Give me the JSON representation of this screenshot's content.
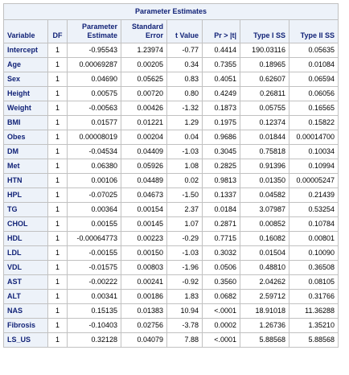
{
  "title": "Parameter Estimates",
  "headers": {
    "variable": "Variable",
    "df": "DF",
    "estimate_l1": "Parameter",
    "estimate_l2": "Estimate",
    "stderr_l1": "Standard",
    "stderr_l2": "Error",
    "tvalue": "t Value",
    "p": "Pr > |t|",
    "ss1": "Type I SS",
    "ss2": "Type II SS"
  },
  "rows": [
    {
      "variable": "Intercept",
      "df": "1",
      "estimate": "-0.95543",
      "stderr": "1.23974",
      "t": "-0.77",
      "p": "0.4414",
      "ss1": "190.03116",
      "ss2": "0.05635"
    },
    {
      "variable": "Age",
      "df": "1",
      "estimate": "0.00069287",
      "stderr": "0.00205",
      "t": "0.34",
      "p": "0.7355",
      "ss1": "0.18965",
      "ss2": "0.01084"
    },
    {
      "variable": "Sex",
      "df": "1",
      "estimate": "0.04690",
      "stderr": "0.05625",
      "t": "0.83",
      "p": "0.4051",
      "ss1": "0.62607",
      "ss2": "0.06594"
    },
    {
      "variable": "Height",
      "df": "1",
      "estimate": "0.00575",
      "stderr": "0.00720",
      "t": "0.80",
      "p": "0.4249",
      "ss1": "0.26811",
      "ss2": "0.06056"
    },
    {
      "variable": "Weight",
      "df": "1",
      "estimate": "-0.00563",
      "stderr": "0.00426",
      "t": "-1.32",
      "p": "0.1873",
      "ss1": "0.05755",
      "ss2": "0.16565"
    },
    {
      "variable": "BMI",
      "df": "1",
      "estimate": "0.01577",
      "stderr": "0.01221",
      "t": "1.29",
      "p": "0.1975",
      "ss1": "0.12374",
      "ss2": "0.15822"
    },
    {
      "variable": "Obes",
      "df": "1",
      "estimate": "0.00008019",
      "stderr": "0.00204",
      "t": "0.04",
      "p": "0.9686",
      "ss1": "0.01844",
      "ss2": "0.00014700"
    },
    {
      "variable": "DM",
      "df": "1",
      "estimate": "-0.04534",
      "stderr": "0.04409",
      "t": "-1.03",
      "p": "0.3045",
      "ss1": "0.75818",
      "ss2": "0.10034"
    },
    {
      "variable": "Met",
      "df": "1",
      "estimate": "0.06380",
      "stderr": "0.05926",
      "t": "1.08",
      "p": "0.2825",
      "ss1": "0.91396",
      "ss2": "0.10994"
    },
    {
      "variable": "HTN",
      "df": "1",
      "estimate": "0.00106",
      "stderr": "0.04489",
      "t": "0.02",
      "p": "0.9813",
      "ss1": "0.01350",
      "ss2": "0.00005247"
    },
    {
      "variable": "HPL",
      "df": "1",
      "estimate": "-0.07025",
      "stderr": "0.04673",
      "t": "-1.50",
      "p": "0.1337",
      "ss1": "0.04582",
      "ss2": "0.21439"
    },
    {
      "variable": "TG",
      "df": "1",
      "estimate": "0.00364",
      "stderr": "0.00154",
      "t": "2.37",
      "p": "0.0184",
      "ss1": "3.07987",
      "ss2": "0.53254"
    },
    {
      "variable": "CHOL",
      "df": "1",
      "estimate": "0.00155",
      "stderr": "0.00145",
      "t": "1.07",
      "p": "0.2871",
      "ss1": "0.00852",
      "ss2": "0.10784"
    },
    {
      "variable": "HDL",
      "df": "1",
      "estimate": "-0.00064773",
      "stderr": "0.00223",
      "t": "-0.29",
      "p": "0.7715",
      "ss1": "0.16082",
      "ss2": "0.00801"
    },
    {
      "variable": "LDL",
      "df": "1",
      "estimate": "-0.00155",
      "stderr": "0.00150",
      "t": "-1.03",
      "p": "0.3032",
      "ss1": "0.01504",
      "ss2": "0.10090"
    },
    {
      "variable": "VDL",
      "df": "1",
      "estimate": "-0.01575",
      "stderr": "0.00803",
      "t": "-1.96",
      "p": "0.0506",
      "ss1": "0.48810",
      "ss2": "0.36508"
    },
    {
      "variable": "AST",
      "df": "1",
      "estimate": "-0.00222",
      "stderr": "0.00241",
      "t": "-0.92",
      "p": "0.3560",
      "ss1": "2.04262",
      "ss2": "0.08105"
    },
    {
      "variable": "ALT",
      "df": "1",
      "estimate": "0.00341",
      "stderr": "0.00186",
      "t": "1.83",
      "p": "0.0682",
      "ss1": "2.59712",
      "ss2": "0.31766"
    },
    {
      "variable": "NAS",
      "df": "1",
      "estimate": "0.15135",
      "stderr": "0.01383",
      "t": "10.94",
      "p": "<.0001",
      "ss1": "18.91018",
      "ss2": "11.36288"
    },
    {
      "variable": "Fibrosis",
      "df": "1",
      "estimate": "-0.10403",
      "stderr": "0.02756",
      "t": "-3.78",
      "p": "0.0002",
      "ss1": "1.26736",
      "ss2": "1.35210"
    },
    {
      "variable": "LS_US",
      "df": "1",
      "estimate": "0.32128",
      "stderr": "0.04079",
      "t": "7.88",
      "p": "<.0001",
      "ss1": "5.88568",
      "ss2": "5.88568"
    }
  ],
  "colors": {
    "header_bg": "#edf2f9",
    "header_text": "#112277",
    "grid": "#c1c1c1"
  }
}
